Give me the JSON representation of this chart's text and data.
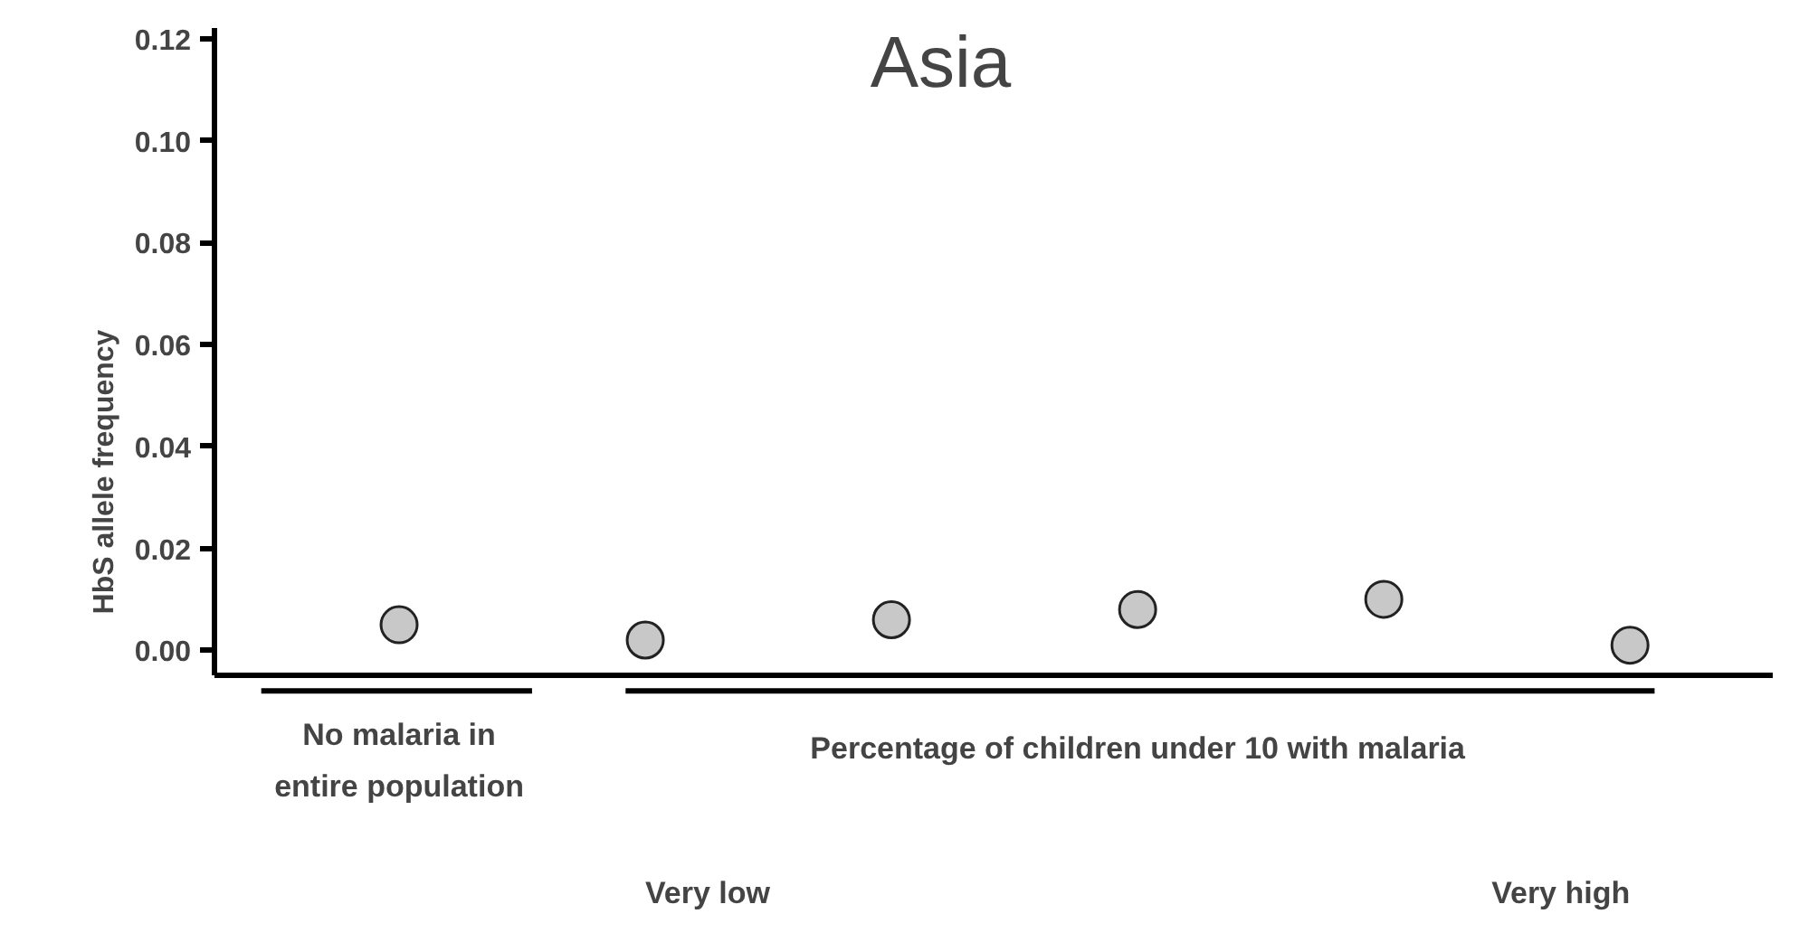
{
  "chart_data": {
    "type": "scatter",
    "title": "Asia",
    "ylabel": "HbS allele frequency",
    "categories": [
      null,
      null,
      null,
      null,
      null,
      null
    ],
    "series": [
      {
        "color": "#c8c8c8",
        "values": [
          0.005,
          0.002,
          0.006,
          0.008,
          0.01,
          0.001
        ]
      }
    ],
    "ylim": [
      -0.005,
      0.122
    ],
    "yticks": [
      {
        "value": 0,
        "label": "0.00"
      },
      {
        "value": 0.02,
        "label": "0.02"
      },
      {
        "value": 0.04,
        "label": "0.04"
      },
      {
        "value": 0.06,
        "label": "0.06"
      },
      {
        "value": 0.08,
        "label": "0.08"
      },
      {
        "value": 0.1,
        "label": "0.10"
      },
      {
        "value": 0.12,
        "label": "0.12"
      }
    ],
    "annotations": [
      "No malaria in entire population",
      "Percentage of children under 10 with malaria",
      "Very low",
      "Very high"
    ],
    "marker": "circle",
    "grid": false,
    "tick_labels": "y"
  }
}
